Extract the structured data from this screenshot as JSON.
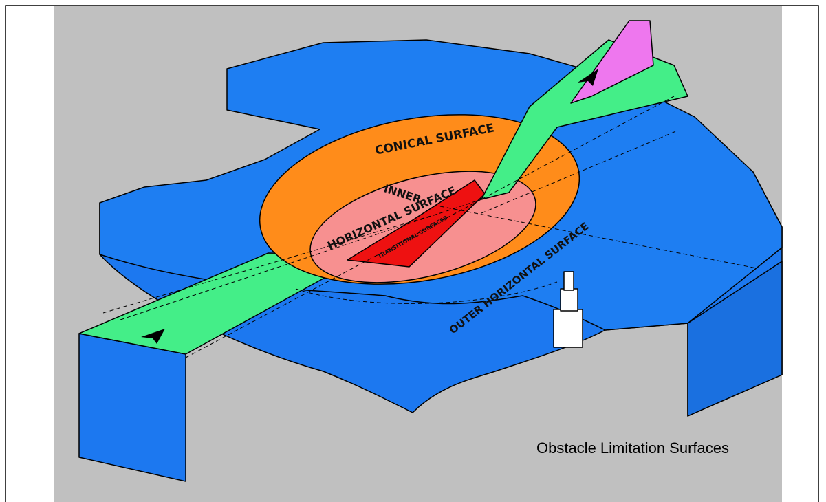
{
  "surfaces": {
    "conical": "CONICAL SURFACE",
    "inner_horizontal": [
      "INNER",
      "HORIZONTAL SURFACE"
    ],
    "transitional": "TRANSITIONAL SURFACES",
    "outer_horizontal": "OUTER HORIZONTAL SURFACE"
  },
  "caption": "Obstacle Limitation Surfaces"
}
